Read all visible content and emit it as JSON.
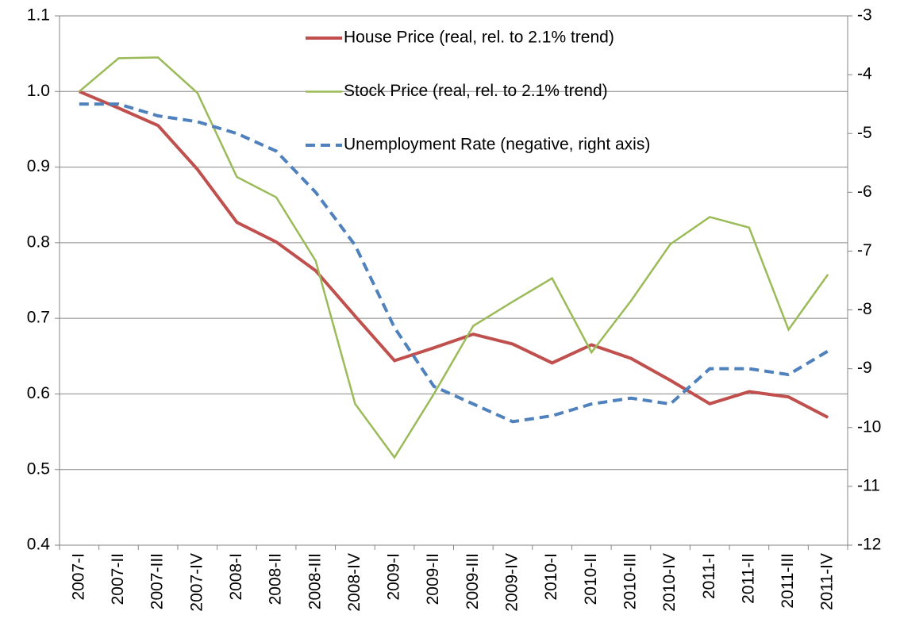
{
  "chart_data": {
    "type": "line",
    "categories": [
      "2007-I",
      "2007-II",
      "2007-III",
      "2007-IV",
      "2008-I",
      "2008-II",
      "2008-III",
      "2008-IV",
      "2009-I",
      "2009-II",
      "2009-III",
      "2009-IV",
      "2010-I",
      "2010-II",
      "2010-III",
      "2010-IV",
      "2011-I",
      "2011-II",
      "2011-III",
      "2011-IV"
    ],
    "series": [
      {
        "name": "House Price (real, rel. to 2.1% trend)",
        "color": "#c0504d",
        "line_style": "solid",
        "values": [
          1.0,
          0.978,
          0.955,
          0.897,
          0.827,
          0.801,
          0.763,
          0.703,
          0.644,
          0.661,
          0.679,
          0.666,
          0.641,
          0.665,
          0.647,
          0.618,
          0.587,
          0.603,
          0.596,
          0.569
        ]
      },
      {
        "name": "Stock Price (real, rel. to 2.1% trend)",
        "color": "#9bbb59",
        "line_style": "solid",
        "values": [
          1.0,
          1.044,
          1.045,
          0.998,
          0.887,
          0.86,
          0.776,
          0.587,
          0.516,
          0.6,
          0.69,
          0.722,
          0.753,
          0.655,
          0.723,
          0.798,
          0.834,
          0.82,
          0.685,
          0.758
        ]
      },
      {
        "name": "Unemployment Rate (negative, right axis)",
        "color": "#4f81bd",
        "line_style": "dashed",
        "axis": "y2",
        "values": [
          -4.5,
          -4.5,
          -4.7,
          -4.8,
          -5.0,
          -5.3,
          -6.0,
          -6.9,
          -8.3,
          -9.3,
          -9.6,
          -9.9,
          -9.8,
          -9.6,
          -9.5,
          -9.6,
          -9.0,
          -9.0,
          -9.1,
          -8.7
        ]
      }
    ],
    "ylim": [
      0.4,
      1.1
    ],
    "yticks": [
      0.4,
      0.5,
      0.6,
      0.7,
      0.8,
      0.9,
      {
        "value": 1,
        "label": "1.0"
      },
      1.1
    ],
    "y2lim": [
      -12,
      -3
    ],
    "y2ticks": [
      -12,
      -11,
      -10,
      -9,
      -8,
      -7,
      -6,
      -5,
      -4,
      -3
    ],
    "grid": true,
    "legend": "top"
  }
}
